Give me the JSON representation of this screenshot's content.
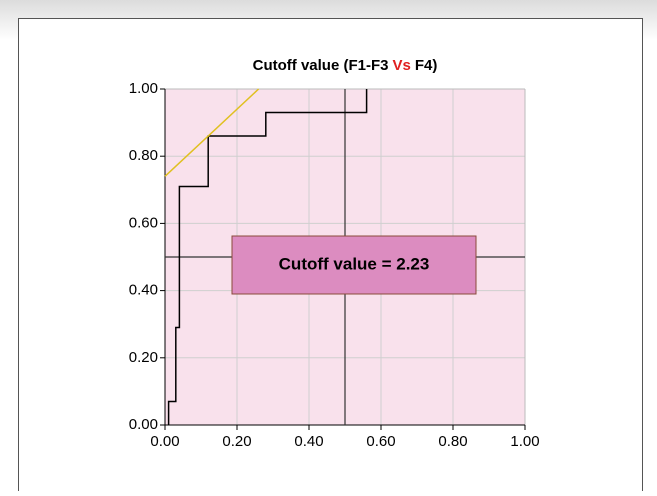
{
  "chart_data": {
    "type": "line",
    "title": [
      "Cutoff value (F1-F3",
      "Vs",
      "F4)"
    ],
    "title_colors": [
      "#000000",
      "#e02020",
      "#000000"
    ],
    "xlim": [
      0,
      1
    ],
    "ylim": [
      0,
      1
    ],
    "xticks": [
      {
        "value": 0,
        "label": "0.00"
      },
      {
        "value": 0.2,
        "label": "0.20"
      },
      {
        "value": 0.4,
        "label": "0.40"
      },
      {
        "value": 0.6,
        "label": "0.60"
      },
      {
        "value": 0.8,
        "label": "0.80"
      },
      {
        "value": 1,
        "label": "1.00"
      }
    ],
    "yticks": [
      {
        "value": 0,
        "label": "0.00"
      },
      {
        "value": 0.2,
        "label": "0.20"
      },
      {
        "value": 0.4,
        "label": "0.40"
      },
      {
        "value": 0.6,
        "label": "0.60"
      },
      {
        "value": 0.8,
        "label": "0.80"
      },
      {
        "value": 1,
        "label": "1.00"
      }
    ],
    "grid": true,
    "series": [
      {
        "color": "#000000",
        "x": [
          0.01,
          0.01,
          0.03,
          0.03,
          0.04,
          0.04,
          0.12,
          0.12,
          0.28,
          0.28,
          0.56,
          0.56
        ],
        "values": [
          0,
          0.07,
          0.07,
          0.29,
          0.29,
          0.71,
          0.71,
          0.86,
          0.86,
          0.93,
          0.93,
          1.0
        ]
      },
      {
        "color": "#e0c020",
        "x": [
          0,
          0.26
        ],
        "values": [
          0.74,
          1.0
        ]
      }
    ],
    "cutoff_x": 0.5,
    "cutoff_y": 0.5,
    "annotation": "Cutoff value = 2.23"
  }
}
